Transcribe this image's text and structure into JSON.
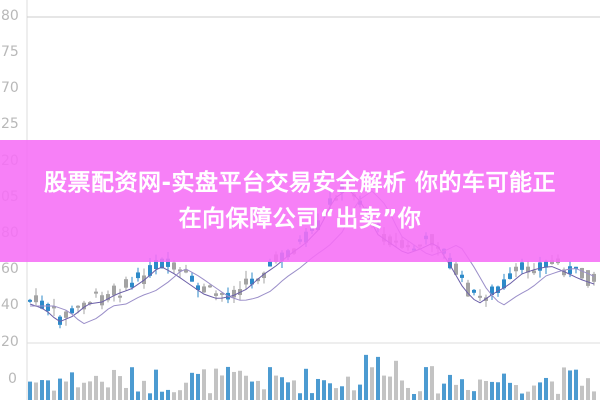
{
  "axis": {
    "ticks": [
      "80",
      "75",
      "70",
      "25",
      "20",
      "05",
      "80",
      "60",
      "40",
      "20",
      "0"
    ]
  },
  "colors": {
    "banner": "#f66ef6",
    "candle_up": "#a3a3a3",
    "candle_down": "#2d8ac9",
    "ma_line": "#6b5fa8",
    "volume": "#b8b8b8"
  },
  "banner": {
    "line1": "股票配资网-实盘平台交易安全解析 你的车可能正",
    "line2": "在向保障公司“出卖”你"
  }
}
